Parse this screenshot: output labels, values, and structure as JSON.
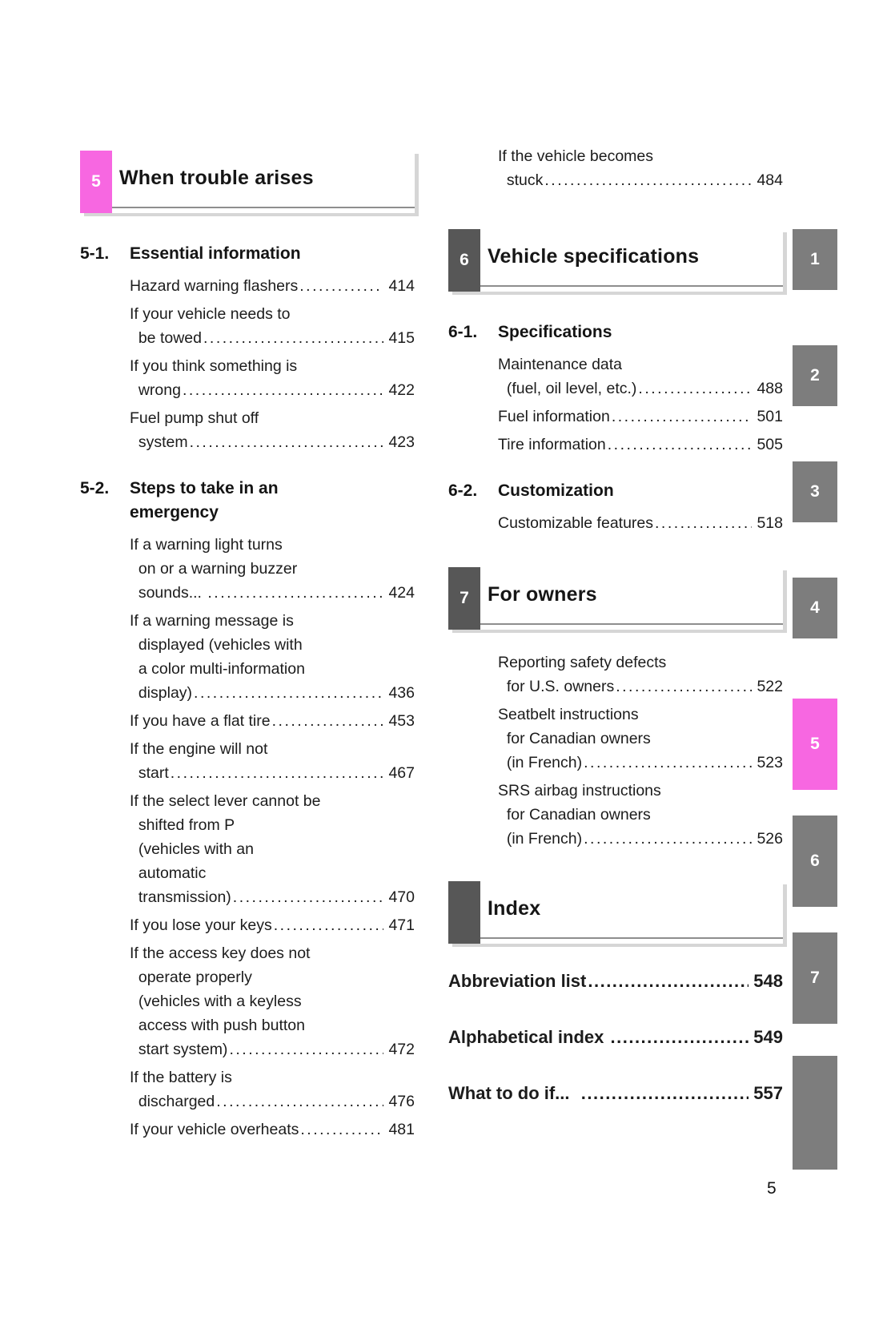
{
  "page_number": "5",
  "colors": {
    "accent_pink": "#f767e1",
    "header_box_gray": "#575757",
    "tab_gray": "#7d7d7d"
  },
  "left": {
    "header": {
      "number": "5",
      "title": "When trouble arises"
    },
    "groups": [
      {
        "id": "5-1.",
        "title": "Essential information",
        "entries": [
          {
            "pre": "",
            "last": "Hazard warning flashers",
            "page": "414"
          },
          {
            "pre": "If your vehicle needs to",
            "last": "  be towed",
            "page": "415"
          },
          {
            "pre": "If you think something is",
            "last": "  wrong",
            "page": "422"
          },
          {
            "pre": "Fuel pump shut off",
            "last": "  system",
            "page": "423"
          }
        ]
      },
      {
        "id": "5-2.",
        "title": "Steps to take in an\nemergency",
        "entries": [
          {
            "pre": "If a warning light turns\n  on or a warning buzzer",
            "last": "  sounds... ",
            "page": "424"
          },
          {
            "pre": "If a warning message is\n  displayed (vehicles with\n  a color multi-information",
            "last": "  display)",
            "page": "436"
          },
          {
            "pre": "",
            "last": "If you have a flat tire",
            "page": "453"
          },
          {
            "pre": "If the engine will not",
            "last": "  start",
            "page": "467"
          },
          {
            "pre": "If the select lever cannot be\n  shifted from P\n  (vehicles with an\n  automatic",
            "last": "  transmission)",
            "page": "470"
          },
          {
            "pre": "",
            "last": "If you lose your keys",
            "page": "471"
          },
          {
            "pre": "If the access key does not\n  operate properly\n  (vehicles with a keyless\n  access with push button",
            "last": "  start system)",
            "page": "472"
          },
          {
            "pre": "If the battery is",
            "last": "  discharged",
            "page": "476"
          },
          {
            "pre": "",
            "last": "If your vehicle overheats",
            "page": "481"
          }
        ]
      }
    ]
  },
  "right": {
    "continuation": {
      "pre": "If the vehicle becomes",
      "last": "  stuck",
      "page": "484"
    },
    "spec_header": {
      "number": "6",
      "title": "Vehicle specifications"
    },
    "spec_groups": [
      {
        "id": "6-1.",
        "title": "Specifications",
        "entries": [
          {
            "pre": "Maintenance data",
            "last": "  (fuel, oil level, etc.)",
            "page": "488"
          },
          {
            "pre": "",
            "last": "Fuel information",
            "page": "501"
          },
          {
            "pre": "",
            "last": "Tire information",
            "page": "505"
          }
        ]
      },
      {
        "id": "6-2.",
        "title": "Customization",
        "entries": [
          {
            "pre": "",
            "last": "Customizable features",
            "page": "518"
          }
        ]
      }
    ],
    "owners_header": {
      "number": "7",
      "title": "For owners"
    },
    "owners_entries": [
      {
        "pre": "Reporting safety defects",
        "last": "  for U.S. owners",
        "page": "522"
      },
      {
        "pre": "Seatbelt instructions\n  for Canadian owners",
        "last": "  (in French)",
        "page": "523"
      },
      {
        "pre": "SRS airbag instructions\n  for Canadian owners",
        "last": "  (in French)",
        "page": "526"
      }
    ],
    "index_header": {
      "number": "",
      "title": "Index"
    },
    "links": [
      {
        "label": "Abbreviation list",
        "page": "548"
      },
      {
        "label": "Alphabetical index ",
        "page": "549"
      },
      {
        "label": "What to do if...  ",
        "page": "557"
      }
    ]
  },
  "tabs": [
    {
      "label": "1"
    },
    {
      "label": "2"
    },
    {
      "label": "3"
    },
    {
      "label": "4"
    },
    {
      "label": "5"
    },
    {
      "label": "6"
    },
    {
      "label": "7"
    },
    {
      "label": ""
    }
  ]
}
